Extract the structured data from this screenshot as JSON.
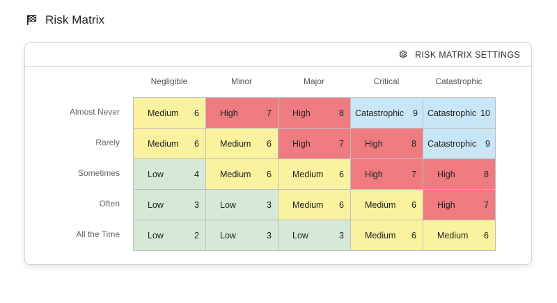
{
  "page": {
    "title": "Risk Matrix"
  },
  "toolbar": {
    "settings_label": "RISK MATRIX SETTINGS",
    "settings_icon": "gear-icon",
    "title_icon": "checkered-flag-icon"
  },
  "colors": {
    "Low": "#d6e9d6",
    "Medium": "#fbf2a0",
    "High": "#ee7b80",
    "Catastrophic": "#c8e6f5"
  },
  "matrix": {
    "columns": [
      "Negligible",
      "Minor",
      "Major",
      "Critical",
      "Catastrophic"
    ],
    "rows": [
      {
        "label": "Almost Never",
        "cells": [
          {
            "level": "Medium",
            "score": "6"
          },
          {
            "level": "High",
            "score": "7"
          },
          {
            "level": "High",
            "score": "8"
          },
          {
            "level": "Catastrophic",
            "score": "9"
          },
          {
            "level": "Catastrophic",
            "score": "10"
          }
        ]
      },
      {
        "label": "Rarely",
        "cells": [
          {
            "level": "Medium",
            "score": "6"
          },
          {
            "level": "Medium",
            "score": "6"
          },
          {
            "level": "High",
            "score": "7"
          },
          {
            "level": "High",
            "score": "8"
          },
          {
            "level": "Catastrophic",
            "score": "9"
          }
        ]
      },
      {
        "label": "Sometimes",
        "cells": [
          {
            "level": "Low",
            "score": "4"
          },
          {
            "level": "Medium",
            "score": "6"
          },
          {
            "level": "Medium",
            "score": "6"
          },
          {
            "level": "High",
            "score": "7"
          },
          {
            "level": "High",
            "score": "8"
          }
        ]
      },
      {
        "label": "Often",
        "cells": [
          {
            "level": "Low",
            "score": "3"
          },
          {
            "level": "Low",
            "score": "3"
          },
          {
            "level": "Medium",
            "score": "6"
          },
          {
            "level": "Medium",
            "score": "6"
          },
          {
            "level": "High",
            "score": "7"
          }
        ]
      },
      {
        "label": "All the Time",
        "cells": [
          {
            "level": "Low",
            "score": "2"
          },
          {
            "level": "Low",
            "score": "3"
          },
          {
            "level": "Low",
            "score": "3"
          },
          {
            "level": "Medium",
            "score": "6"
          },
          {
            "level": "Medium",
            "score": "6"
          }
        ]
      }
    ]
  }
}
